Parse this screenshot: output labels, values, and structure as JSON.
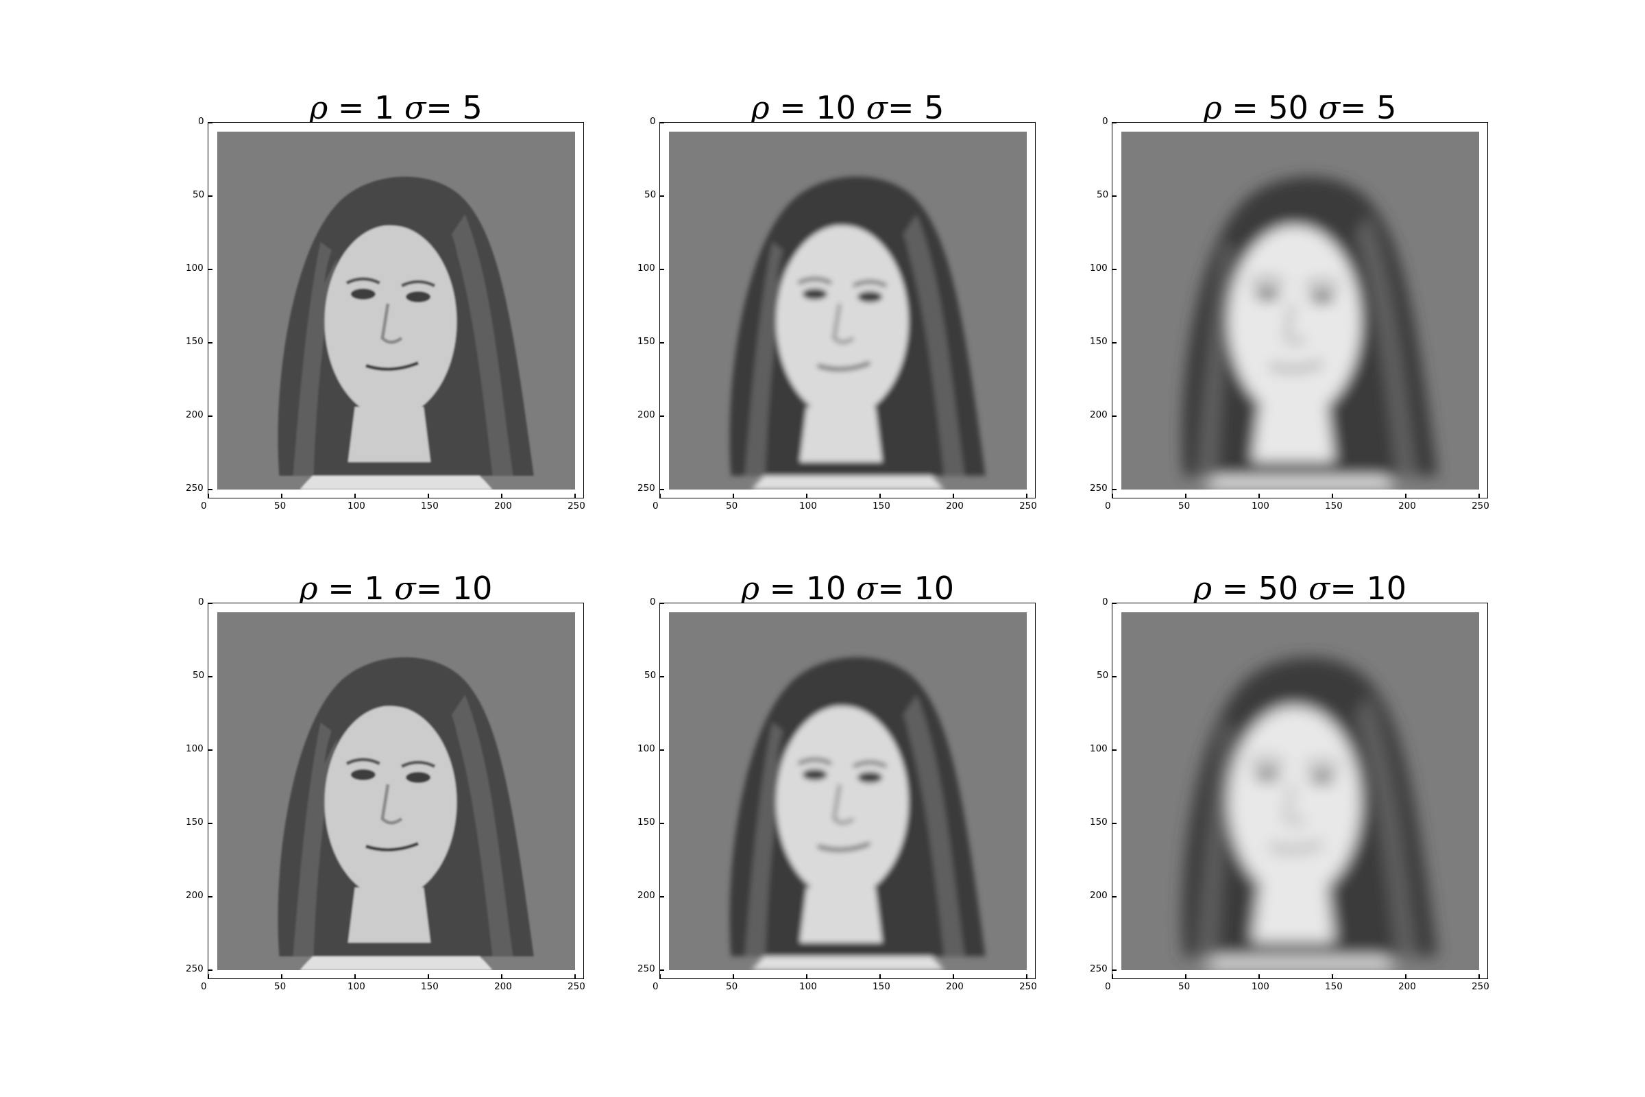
{
  "figure": {
    "panels": [
      {
        "id": "r1c1",
        "rho": "1",
        "sigma": "5",
        "blur": 0.6,
        "contrast": 1.0
      },
      {
        "id": "r1c2",
        "rho": "10",
        "sigma": "5",
        "blur": 1.8,
        "contrast": 1.15
      },
      {
        "id": "r1c3",
        "rho": "50",
        "sigma": "5",
        "blur": 5.0,
        "contrast": 1.25
      },
      {
        "id": "r2c1",
        "rho": "1",
        "sigma": "10",
        "blur": 0.7,
        "contrast": 1.0
      },
      {
        "id": "r2c2",
        "rho": "10",
        "sigma": "10",
        "blur": 2.0,
        "contrast": 1.15
      },
      {
        "id": "r2c3",
        "rho": "50",
        "sigma": "10",
        "blur": 5.5,
        "contrast": 1.25
      }
    ],
    "title_parts": {
      "rho_symbol": "ρ",
      "eq": " = ",
      "sigma_symbol": "σ",
      "eq2": "= "
    },
    "x_ticks": [
      "0",
      "50",
      "100",
      "150",
      "200",
      "250"
    ],
    "y_ticks": [
      "0",
      "50",
      "100",
      "150",
      "200",
      "250"
    ],
    "colors": {
      "background": "#808080",
      "frame": "#000000"
    }
  }
}
